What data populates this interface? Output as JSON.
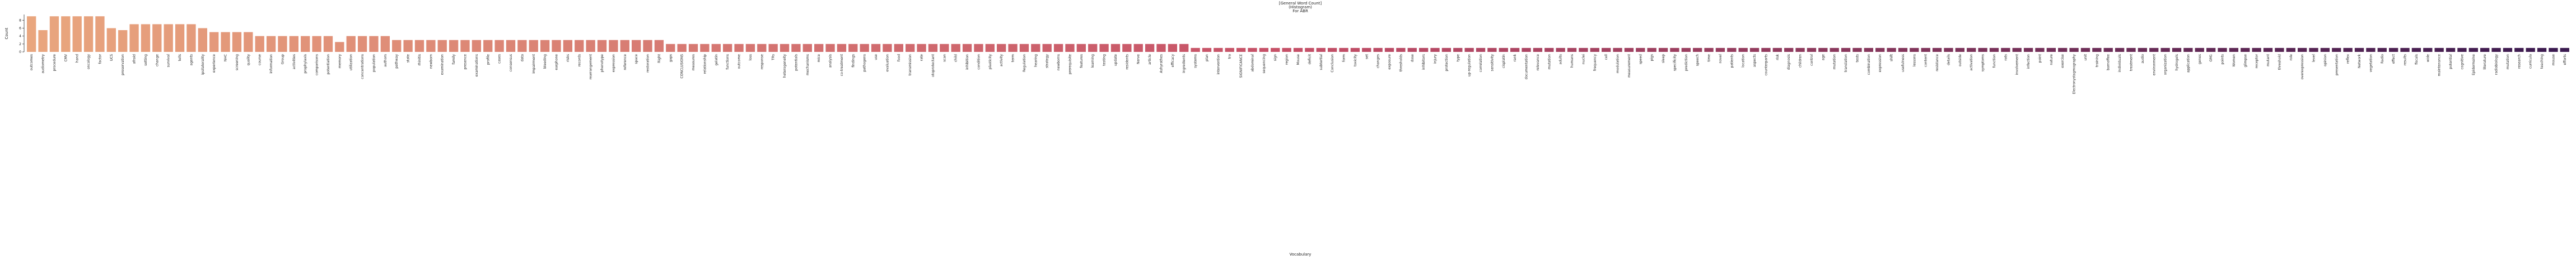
{
  "chart_data": {
    "type": "bar",
    "title": "[General Word Count]",
    "subtitle": "(Histogram)",
    "caption": "For ABR",
    "x_label": "Vocabulary",
    "y_label": "Count",
    "categories": [
      "outcomes",
      "audiometry",
      "procedure",
      "CMV",
      "hand",
      "oncology",
      "factor",
      "UCS",
      "preservation",
      "afraid",
      "setting",
      "change",
      "survival",
      "tells",
      "agents",
      "ipsilaterality",
      "experience",
      "NHC",
      "screening",
      "quality",
      "course",
      "information",
      "Group",
      "activities",
      "prophylaxis",
      "comparisons",
      "potentiation",
      "memory",
      "utilization",
      "concentrations",
      "population",
      "authors",
      "pathway",
      "state",
      "rhinitis",
      "newborn",
      "examination",
      "family",
      "presence",
      "examinations",
      "profile",
      "cases",
      "consensus",
      "data",
      "impairment",
      "bleeding",
      "earphone",
      "risks",
      "records",
      "rearrangement",
      "phenotype",
      "expression",
      "reference",
      "space",
      "restoration",
      "Right",
      "gaps",
      "CONCLUSIONS",
      "measures",
      "relationship",
      "gelatin",
      "functions",
      "outcome",
      "loss",
      "response",
      "TRs",
      "heterogeneity",
      "potentials",
      "mechanisms",
      "mice",
      "analysis",
      "co-treatment",
      "findings",
      "pathogens",
      "use",
      "evaluation",
      "food",
      "transmission",
      "rate",
      "otoprotectant",
      "scan",
      "child",
      "inhibition",
      "condition",
      "plasticity",
      "activity",
      "term",
      "Regulation",
      "hearing",
      "strategy",
      "newborns",
      "prerequisite",
      "features",
      "learning",
      "testing",
      "update",
      "residents",
      "Nerve",
      "article",
      "Ashyrathes",
      "efficacy",
      "ingredients",
      "systems",
      "plan",
      "intervention",
      "tra",
      "SIGNIFICANCE",
      "abdominal",
      "sequencing",
      "sign",
      "region",
      "Mouse",
      "deficit",
      "subtertial",
      "Conclusion",
      "form",
      "toxicity",
      "set",
      "changes",
      "exposure",
      "thresholds",
      "dose",
      "inhibitors",
      "injury",
      "protection",
      "type",
      "up-regulation",
      "correlation",
      "sensitivity",
      "cisplatin",
      "rank",
      "documentation",
      "relevance",
      "mutation",
      "adults",
      "humans",
      "nuclei",
      "frequency",
      "cell",
      "modulation",
      "measurement",
      "speed",
      "pigs",
      "sleep",
      "specificity",
      "prediction",
      "speech",
      "time",
      "novel",
      "patients",
      "location",
      "aspects",
      "counterparts",
      "risk",
      "diagnosis",
      "children",
      "control",
      "age",
      "mutation",
      "translation",
      "tests",
      "combination",
      "expression",
      "shift",
      "usefulness",
      "lessons",
      "content",
      "resistance",
      "details",
      "outside",
      "activation",
      "symptoms",
      "function",
      "rats",
      "involvement",
      "infection",
      "point",
      "nature",
      "exercise",
      "Electronystagmography",
      "unit",
      "training",
      "barnoffee",
      "individuals",
      "treatment",
      "audio",
      "environment",
      "organization",
      "hydrogels",
      "application",
      "genes",
      "GM1",
      "points",
      "Women",
      "glimpse",
      "receptor",
      "mutant",
      "threshold",
      "role",
      "overexpression",
      "level",
      "opinion",
      "presentation",
      "reflex",
      "Network",
      "vegetation",
      "Radio",
      "effect",
      "results",
      "fiscals",
      "wide",
      "maintenance",
      "potential",
      "cognitive",
      "Epidermalne",
      "literature",
      "radiobiology",
      "mutation",
      "research",
      "curricula",
      "teaching",
      "mouse",
      "efforts"
    ],
    "values": [
      9,
      5.5,
      9,
      9,
      9,
      9,
      9,
      6,
      5.5,
      7,
      7,
      7,
      7,
      7,
      7,
      6,
      5,
      5,
      5,
      5,
      4,
      4,
      4,
      4,
      4,
      4,
      4,
      2.5,
      4,
      4,
      4,
      4,
      3,
      3,
      3,
      3,
      3,
      3,
      3,
      3,
      3,
      3,
      3,
      3,
      3,
      3,
      3,
      3,
      3,
      3,
      3,
      3,
      3,
      3,
      3,
      3,
      2,
      2,
      2,
      2,
      2,
      2,
      2,
      2,
      2,
      2,
      2,
      2,
      2,
      2,
      2,
      2,
      2,
      2,
      2,
      2,
      2,
      2,
      2,
      2,
      2,
      2,
      2,
      2,
      2,
      2,
      2,
      2,
      2,
      2,
      2,
      2,
      2,
      2,
      2,
      2,
      2,
      2,
      2,
      2,
      2,
      2,
      1,
      1,
      1,
      1,
      1,
      1,
      1,
      1,
      1,
      1,
      1,
      1,
      1,
      1,
      1,
      1,
      1,
      1,
      1,
      1,
      1,
      1,
      1,
      1,
      1,
      1,
      1,
      1,
      1,
      1,
      1,
      1,
      1,
      1,
      1,
      1,
      1,
      1,
      1,
      1,
      1,
      1,
      1,
      1,
      1,
      1,
      1,
      1,
      1,
      1,
      1,
      1,
      1,
      1,
      1,
      1,
      1,
      1,
      1,
      1,
      1,
      1,
      1,
      1,
      1,
      1,
      1,
      1,
      1,
      1,
      1,
      1,
      1,
      1,
      1,
      1,
      1,
      1,
      1,
      1,
      1,
      1,
      1,
      1,
      1,
      1,
      1,
      1,
      1,
      1,
      1,
      1,
      1,
      1,
      1,
      1,
      1,
      1,
      1,
      1,
      1,
      1,
      1,
      1,
      1,
      1,
      1,
      1,
      1,
      1,
      1,
      1,
      1,
      1,
      1,
      1,
      1,
      1,
      1,
      1,
      1
    ],
    "palette": [
      "#e9a67e",
      "#c54f67",
      "#3a1a4f"
    ],
    "ylim": [
      0,
      9.45
    ],
    "yticks": [
      0,
      2,
      4,
      6,
      8
    ]
  }
}
